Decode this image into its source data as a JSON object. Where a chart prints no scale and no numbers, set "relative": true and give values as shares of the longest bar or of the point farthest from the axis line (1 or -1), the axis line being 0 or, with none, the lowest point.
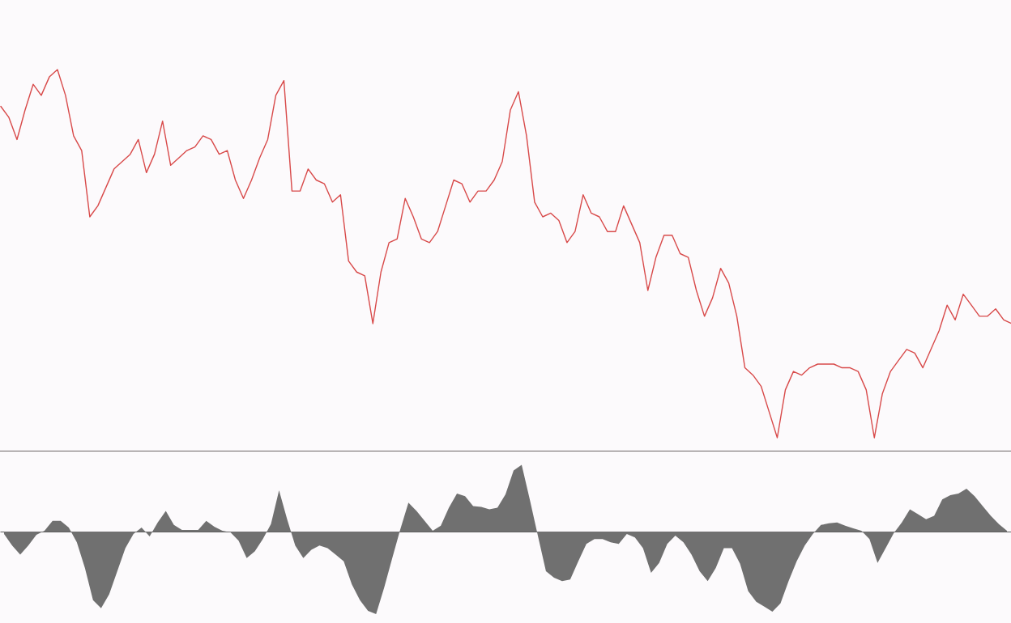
{
  "chart_data": [
    {
      "type": "line",
      "relative": true,
      "tick_labels": false,
      "categories": [
        null,
        null,
        null,
        null,
        null,
        null,
        null,
        null,
        null,
        null,
        null,
        null,
        null,
        null,
        null,
        null,
        null,
        null,
        null,
        null,
        null,
        null,
        null,
        null,
        null,
        null,
        null,
        null,
        null,
        null,
        null,
        null,
        null,
        null,
        null,
        null,
        null,
        null,
        null,
        null,
        null,
        null,
        null,
        null,
        null,
        null,
        null,
        null,
        null,
        null,
        null,
        null,
        null,
        null,
        null,
        null,
        null,
        null,
        null,
        null,
        null,
        null,
        null,
        null,
        null,
        null,
        null,
        null,
        null,
        null,
        null,
        null,
        null,
        null,
        null,
        null,
        null,
        null,
        null,
        null,
        null,
        null,
        null,
        null,
        null,
        null,
        null,
        null,
        null,
        null,
        null,
        null,
        null,
        null,
        null,
        null,
        null,
        null,
        null,
        null,
        null,
        null,
        null,
        null,
        null,
        null,
        null,
        null,
        null,
        null,
        null,
        null,
        null,
        null,
        null,
        null,
        null,
        null,
        null,
        null,
        null,
        null,
        null,
        null,
        null,
        null
      ],
      "series": [
        {
          "color": "#d84a4a",
          "values": [
            0.9,
            0.87,
            0.81,
            0.89,
            0.96,
            0.93,
            0.98,
            1,
            0.93,
            0.82,
            0.78,
            0.6,
            0.63,
            0.68,
            0.73,
            0.75,
            0.77,
            0.81,
            0.72,
            0.77,
            0.86,
            0.74,
            0.76,
            0.78,
            0.79,
            0.82,
            0.81,
            0.77,
            0.78,
            0.7,
            0.65,
            0.7,
            0.76,
            0.81,
            0.93,
            0.97,
            0.67,
            0.67,
            0.73,
            0.7,
            0.69,
            0.64,
            0.66,
            0.48,
            0.45,
            0.44,
            0.31,
            0.45,
            0.53,
            0.54,
            0.65,
            0.6,
            0.54,
            0.53,
            0.56,
            0.63,
            0.7,
            0.69,
            0.64,
            0.67,
            0.67,
            0.7,
            0.75,
            0.89,
            0.94,
            0.82,
            0.64,
            0.6,
            0.61,
            0.59,
            0.53,
            0.56,
            0.66,
            0.61,
            0.6,
            0.56,
            0.56,
            0.63,
            0.58,
            0.53,
            0.4,
            0.49,
            0.55,
            0.55,
            0.5,
            0.49,
            0.4,
            0.33,
            0.38,
            0.46,
            0.42,
            0.33,
            0.19,
            0.17,
            0.14,
            0.07,
            0,
            0.13,
            0.18,
            0.17,
            0.19,
            0.2,
            0.2,
            0.2,
            0.19,
            0.19,
            0.18,
            0.13,
            0,
            0.12,
            0.18,
            0.21,
            0.24,
            0.23,
            0.19,
            0.24,
            0.29,
            0.36,
            0.32,
            0.39,
            0.36,
            0.33,
            0.33,
            0.35,
            0.32,
            0.31
          ]
        }
      ]
    },
    {
      "type": "area",
      "relative": true,
      "tick_labels": false,
      "categories": [
        null,
        null,
        null,
        null,
        null,
        null,
        null,
        null,
        null,
        null,
        null,
        null,
        null,
        null,
        null,
        null,
        null,
        null,
        null,
        null,
        null,
        null,
        null,
        null,
        null,
        null,
        null,
        null,
        null,
        null,
        null,
        null,
        null,
        null,
        null,
        null,
        null,
        null,
        null,
        null,
        null,
        null,
        null,
        null,
        null,
        null,
        null,
        null,
        null,
        null,
        null,
        null,
        null,
        null,
        null,
        null,
        null,
        null,
        null,
        null,
        null,
        null,
        null,
        null,
        null,
        null,
        null,
        null,
        null,
        null,
        null,
        null,
        null,
        null,
        null,
        null,
        null,
        null,
        null,
        null,
        null,
        null,
        null,
        null,
        null,
        null,
        null,
        null,
        null,
        null,
        null,
        null,
        null,
        null,
        null,
        null,
        null,
        null,
        null,
        null,
        null,
        null,
        null,
        null,
        null,
        null,
        null,
        null,
        null,
        null,
        null,
        null,
        null,
        null,
        null,
        null,
        null,
        null,
        null,
        null,
        null,
        null,
        null,
        null,
        null
      ],
      "series": [
        {
          "color": "#707070",
          "values": [
            -0.03,
            -0.17,
            -0.28,
            -0.17,
            -0.04,
            0.01,
            0.13,
            0.13,
            0.05,
            -0.13,
            -0.44,
            -0.83,
            -0.93,
            -0.76,
            -0.48,
            -0.2,
            -0.03,
            0.05,
            -0.06,
            0.11,
            0.25,
            0.08,
            0.02,
            0.02,
            0.02,
            0.13,
            0.06,
            0.01,
            -0.01,
            -0.11,
            -0.32,
            -0.24,
            -0.09,
            0.09,
            0.5,
            0.15,
            -0.17,
            -0.32,
            -0.22,
            -0.17,
            -0.2,
            -0.28,
            -0.36,
            -0.64,
            -0.83,
            -0.96,
            -1,
            -0.68,
            -0.32,
            0.03,
            0.35,
            0.25,
            0.13,
            0.01,
            0.07,
            0.29,
            0.46,
            0.43,
            0.31,
            0.3,
            0.27,
            0.29,
            0.45,
            0.74,
            0.81,
            0.39,
            -0.05,
            -0.48,
            -0.56,
            -0.6,
            -0.58,
            -0.36,
            -0.15,
            -0.09,
            -0.09,
            -0.13,
            -0.15,
            -0.03,
            -0.07,
            -0.2,
            -0.5,
            -0.38,
            -0.15,
            -0.05,
            -0.13,
            -0.28,
            -0.48,
            -0.6,
            -0.44,
            -0.2,
            -0.2,
            -0.39,
            -0.72,
            -0.85,
            -0.91,
            -0.97,
            -0.87,
            -0.6,
            -0.36,
            -0.17,
            -0.03,
            0.08,
            0.1,
            0.11,
            0.07,
            0.04,
            0.01,
            -0.09,
            -0.38,
            -0.2,
            -0.02,
            0.11,
            0.27,
            0.21,
            0.15,
            0.19,
            0.39,
            0.44,
            0.46,
            0.52,
            0.43,
            0.31,
            0.19,
            0.09,
            0.01
          ]
        }
      ]
    }
  ]
}
